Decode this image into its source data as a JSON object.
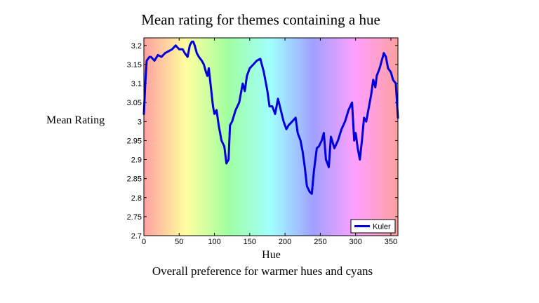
{
  "chart_data": {
    "type": "line",
    "title": "Mean rating for themes containing a hue",
    "xlabel": "Hue",
    "ylabel": "Mean Rating",
    "caption": "Overall preference for warmer hues and cyans",
    "xlim": [
      0,
      360
    ],
    "ylim": [
      2.7,
      3.22
    ],
    "xticks": [
      0,
      50,
      100,
      150,
      200,
      250,
      300,
      350
    ],
    "yticks": [
      2.7,
      2.75,
      2.8,
      2.85,
      2.9,
      2.95,
      3,
      3.05,
      3.1,
      3.15,
      3.2
    ],
    "ytick_labels": [
      "2.7",
      "2.75",
      "2.8",
      "2.85",
      "2.9",
      "2.95",
      "3",
      "3.05",
      "3.1",
      "3.15",
      "3.2"
    ],
    "background": "hue-spectrum",
    "legend_position": "bottom-right",
    "series": [
      {
        "name": "Kuler",
        "color": "#0000dd",
        "x": [
          0,
          2,
          4,
          6,
          8,
          10,
          15,
          20,
          25,
          30,
          35,
          40,
          45,
          50,
          55,
          58,
          62,
          65,
          68,
          70,
          72,
          75,
          78,
          82,
          85,
          88,
          90,
          92,
          95,
          98,
          100,
          103,
          106,
          110,
          114,
          117,
          120,
          122,
          125,
          130,
          135,
          140,
          143,
          146,
          150,
          155,
          160,
          165,
          170,
          173,
          175,
          178,
          182,
          186,
          190,
          194,
          198,
          202,
          205,
          210,
          215,
          218,
          222,
          225,
          228,
          231,
          235,
          238,
          241,
          245,
          248,
          252,
          255,
          258,
          262,
          265,
          270,
          275,
          280,
          285,
          290,
          295,
          298,
          300,
          303,
          306,
          309,
          312,
          315,
          318,
          322,
          325,
          328,
          330,
          334,
          337,
          340,
          343,
          346,
          350,
          353,
          357,
          360
        ],
        "y": [
          3.02,
          3.1,
          3.16,
          3.165,
          3.17,
          3.17,
          3.16,
          3.175,
          3.17,
          3.18,
          3.185,
          3.19,
          3.2,
          3.19,
          3.19,
          3.18,
          3.17,
          3.2,
          3.21,
          3.21,
          3.2,
          3.18,
          3.17,
          3.16,
          3.15,
          3.13,
          3.12,
          3.14,
          3.09,
          3.04,
          3.02,
          3.03,
          2.99,
          2.95,
          2.935,
          2.89,
          2.9,
          2.99,
          3.0,
          3.03,
          3.05,
          3.1,
          3.08,
          3.12,
          3.14,
          3.15,
          3.16,
          3.165,
          3.13,
          3.1,
          3.08,
          3.04,
          3.04,
          3.02,
          3.06,
          3.03,
          3.0,
          2.98,
          2.99,
          3.0,
          3.01,
          2.97,
          2.95,
          2.92,
          2.88,
          2.83,
          2.815,
          2.81,
          2.87,
          2.93,
          2.935,
          2.95,
          2.97,
          2.9,
          2.88,
          2.96,
          2.93,
          2.95,
          2.98,
          3.0,
          3.03,
          3.05,
          2.95,
          2.97,
          2.93,
          2.9,
          2.95,
          3.01,
          3.0,
          3.03,
          3.07,
          3.11,
          3.09,
          3.12,
          3.14,
          3.16,
          3.18,
          3.17,
          3.14,
          3.13,
          3.11,
          3.1,
          3.01
        ]
      }
    ]
  }
}
